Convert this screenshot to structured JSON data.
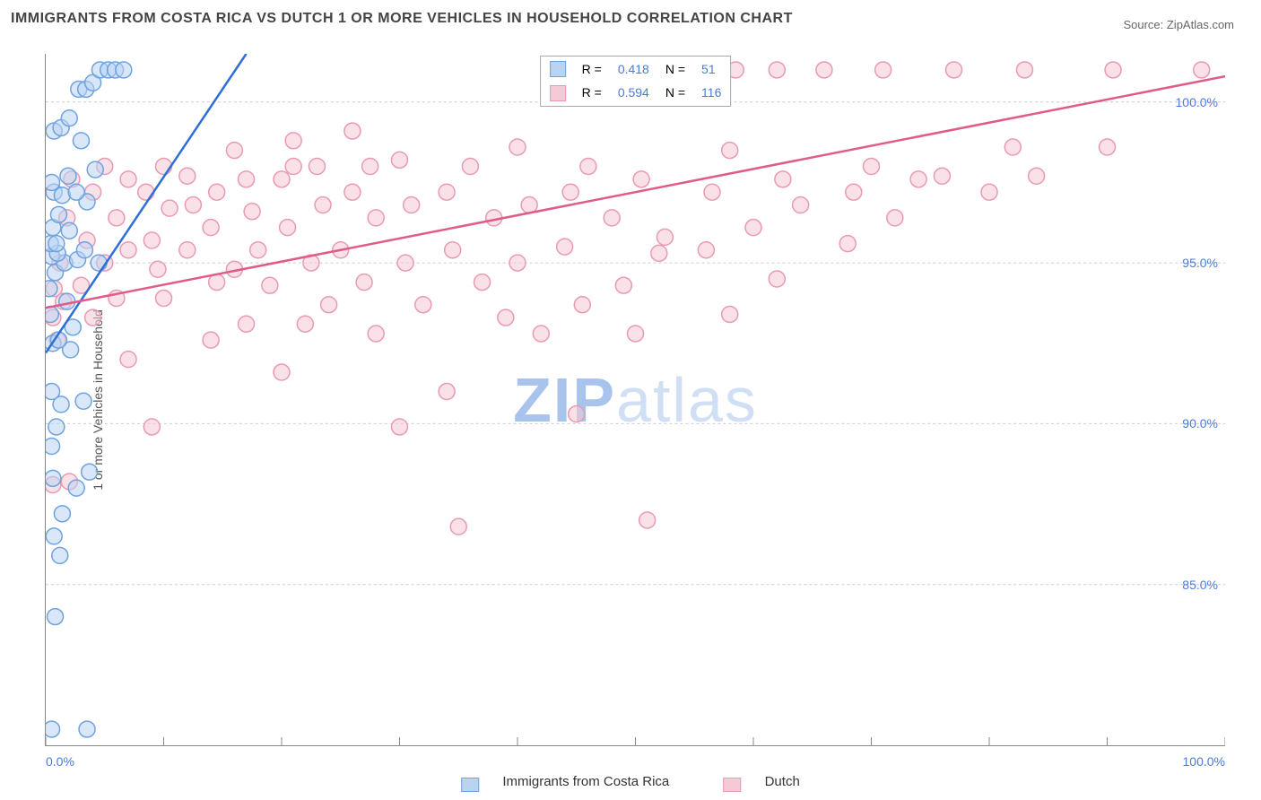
{
  "title": "IMMIGRANTS FROM COSTA RICA VS DUTCH 1 OR MORE VEHICLES IN HOUSEHOLD CORRELATION CHART",
  "source": "Source: ZipAtlas.com",
  "watermark_bold": "ZIP",
  "watermark_rest": "atlas",
  "chart": {
    "type": "scatter",
    "ylabel": "1 or more Vehicles in Household",
    "xlim": [
      0,
      100
    ],
    "ylim": [
      80,
      101.5
    ],
    "x_ticks_minor_step": 10,
    "x_ticks_labeled": [
      0,
      100
    ],
    "x_tick_labels": [
      "0.0%",
      "100.0%"
    ],
    "y_ticks": [
      85,
      90,
      95,
      100
    ],
    "y_tick_labels": [
      "85.0%",
      "90.0%",
      "95.0%",
      "100.0%"
    ],
    "grid_color": "#cccccc",
    "background_color": "#ffffff",
    "marker_radius": 9,
    "marker_stroke_width": 1.5,
    "trend_line_width": 2.5,
    "series": [
      {
        "name": "Immigrants from Costa Rica",
        "fill": "#b9d4f3",
        "stroke": "#6ea3e0",
        "fill_opacity": 0.55,
        "r_value": "0.418",
        "n_value": "51",
        "trend": {
          "x1": 0,
          "y1": 92.2,
          "x2": 17,
          "y2": 101.5,
          "color": "#2e6fd6"
        },
        "points": [
          [
            0.5,
            80.5
          ],
          [
            3.5,
            80.5
          ],
          [
            0.8,
            84.0
          ],
          [
            1.2,
            85.9
          ],
          [
            0.7,
            86.5
          ],
          [
            1.4,
            87.2
          ],
          [
            2.6,
            88.0
          ],
          [
            0.6,
            88.3
          ],
          [
            3.7,
            88.5
          ],
          [
            0.5,
            89.3
          ],
          [
            0.9,
            89.9
          ],
          [
            1.3,
            90.6
          ],
          [
            3.2,
            90.7
          ],
          [
            0.5,
            91.0
          ],
          [
            2.1,
            92.3
          ],
          [
            0.6,
            92.5
          ],
          [
            1.1,
            92.6
          ],
          [
            2.3,
            93.0
          ],
          [
            0.4,
            93.4
          ],
          [
            1.8,
            93.8
          ],
          [
            4.5,
            95.0
          ],
          [
            0.3,
            94.2
          ],
          [
            0.8,
            94.7
          ],
          [
            1.6,
            95.0
          ],
          [
            2.7,
            95.1
          ],
          [
            0.5,
            95.2
          ],
          [
            1.0,
            95.3
          ],
          [
            3.3,
            95.4
          ],
          [
            0.4,
            95.6
          ],
          [
            0.9,
            95.6
          ],
          [
            0.6,
            96.1
          ],
          [
            2.0,
            96.0
          ],
          [
            1.1,
            96.5
          ],
          [
            3.5,
            96.9
          ],
          [
            0.7,
            97.2
          ],
          [
            1.4,
            97.1
          ],
          [
            2.6,
            97.2
          ],
          [
            0.5,
            97.5
          ],
          [
            1.9,
            97.7
          ],
          [
            3.0,
            98.8
          ],
          [
            4.2,
            97.9
          ],
          [
            0.7,
            99.1
          ],
          [
            1.3,
            99.2
          ],
          [
            2.0,
            99.5
          ],
          [
            2.8,
            100.4
          ],
          [
            3.4,
            100.4
          ],
          [
            4.0,
            100.6
          ],
          [
            4.6,
            101.0
          ],
          [
            5.3,
            101.0
          ],
          [
            5.9,
            101.0
          ],
          [
            6.6,
            101.0
          ]
        ]
      },
      {
        "name": "Dutch",
        "fill": "#f6c9d6",
        "stroke": "#e89ab2",
        "fill_opacity": 0.55,
        "r_value": "0.594",
        "n_value": "116",
        "trend": {
          "x1": 0,
          "y1": 93.6,
          "x2": 100,
          "y2": 100.8,
          "color": "#e15b8a"
        },
        "points": [
          [
            35,
            86.8
          ],
          [
            51,
            87.0
          ],
          [
            0.6,
            88.1
          ],
          [
            2.0,
            88.2
          ],
          [
            9,
            89.9
          ],
          [
            30,
            89.9
          ],
          [
            34,
            91.0
          ],
          [
            45,
            90.3
          ],
          [
            20,
            91.6
          ],
          [
            7,
            92.0
          ],
          [
            1.0,
            92.6
          ],
          [
            14,
            92.6
          ],
          [
            28,
            92.8
          ],
          [
            42,
            92.8
          ],
          [
            50,
            92.8
          ],
          [
            4,
            93.3
          ],
          [
            0.6,
            93.3
          ],
          [
            17,
            93.1
          ],
          [
            22,
            93.1
          ],
          [
            39,
            93.3
          ],
          [
            58,
            93.4
          ],
          [
            1.5,
            93.8
          ],
          [
            6,
            93.9
          ],
          [
            10,
            93.9
          ],
          [
            24,
            93.7
          ],
          [
            32,
            93.7
          ],
          [
            45.5,
            93.7
          ],
          [
            3,
            94.3
          ],
          [
            14.5,
            94.4
          ],
          [
            19,
            94.3
          ],
          [
            27,
            94.4
          ],
          [
            37,
            94.4
          ],
          [
            49,
            94.3
          ],
          [
            62,
            94.5
          ],
          [
            0.7,
            94.2
          ],
          [
            5,
            95.0
          ],
          [
            9.5,
            94.8
          ],
          [
            16,
            94.8
          ],
          [
            22.5,
            95.0
          ],
          [
            30.5,
            95.0
          ],
          [
            40,
            95.0
          ],
          [
            52,
            95.3
          ],
          [
            1.2,
            95.0
          ],
          [
            7,
            95.4
          ],
          [
            12,
            95.4
          ],
          [
            18,
            95.4
          ],
          [
            25,
            95.4
          ],
          [
            34.5,
            95.4
          ],
          [
            44,
            95.5
          ],
          [
            56,
            95.4
          ],
          [
            68,
            95.6
          ],
          [
            3.5,
            95.7
          ],
          [
            9,
            95.7
          ],
          [
            14,
            96.1
          ],
          [
            20.5,
            96.1
          ],
          [
            28,
            96.4
          ],
          [
            10.5,
            96.7
          ],
          [
            38,
            96.4
          ],
          [
            48,
            96.4
          ],
          [
            60,
            96.1
          ],
          [
            72,
            96.4
          ],
          [
            1.8,
            96.4
          ],
          [
            6,
            96.4
          ],
          [
            12.5,
            96.8
          ],
          [
            17.5,
            96.6
          ],
          [
            23.5,
            96.8
          ],
          [
            31,
            96.8
          ],
          [
            41,
            96.8
          ],
          [
            52.5,
            95.8
          ],
          [
            64,
            96.8
          ],
          [
            76,
            97.7
          ],
          [
            4,
            97.2
          ],
          [
            8.5,
            97.2
          ],
          [
            14.5,
            97.2
          ],
          [
            20,
            97.6
          ],
          [
            26,
            97.2
          ],
          [
            34,
            97.2
          ],
          [
            44.5,
            97.2
          ],
          [
            56.5,
            97.2
          ],
          [
            68.5,
            97.2
          ],
          [
            80,
            97.2
          ],
          [
            2.2,
            97.6
          ],
          [
            7,
            97.6
          ],
          [
            12,
            97.7
          ],
          [
            17,
            97.6
          ],
          [
            23,
            98.0
          ],
          [
            30,
            98.2
          ],
          [
            16,
            98.5
          ],
          [
            40,
            98.6
          ],
          [
            50.5,
            97.6
          ],
          [
            62.5,
            97.6
          ],
          [
            74,
            97.6
          ],
          [
            84,
            97.7
          ],
          [
            5,
            98.0
          ],
          [
            10,
            98.0
          ],
          [
            21,
            98.8
          ],
          [
            21,
            98.0
          ],
          [
            27.5,
            98.0
          ],
          [
            36,
            98.0
          ],
          [
            46,
            98.0
          ],
          [
            58,
            98.5
          ],
          [
            70,
            98.0
          ],
          [
            82,
            98.6
          ],
          [
            90,
            98.6
          ],
          [
            26,
            99.1
          ],
          [
            45,
            100.4
          ],
          [
            52,
            101.0
          ],
          [
            55,
            101.0
          ],
          [
            58.5,
            101.0
          ],
          [
            62,
            101.0
          ],
          [
            66,
            101.0
          ],
          [
            71,
            101.0
          ],
          [
            77,
            101.0
          ],
          [
            83,
            101.0
          ],
          [
            90.5,
            101.0
          ],
          [
            98,
            101.0
          ]
        ]
      }
    ]
  },
  "stat_legend": {
    "r_label": "R =",
    "n_label": "N ="
  },
  "bottom_legend": {
    "items": [
      {
        "label": "Immigrants from Costa Rica",
        "fill": "#b9d4f3",
        "stroke": "#6ea3e0"
      },
      {
        "label": "Dutch",
        "fill": "#f6c9d6",
        "stroke": "#e89ab2"
      }
    ]
  }
}
